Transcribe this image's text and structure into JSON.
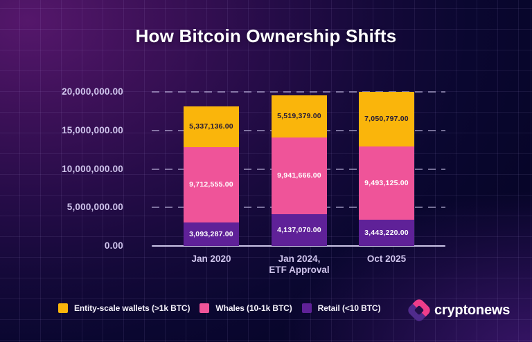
{
  "title": "How Bitcoin Ownership Shifts",
  "chart_data": {
    "type": "bar",
    "stacked": true,
    "title": "How Bitcoin Ownership Shifts",
    "categories": [
      "Jan 2020",
      "Jan 2024,\nETF Approval",
      "Oct 2025"
    ],
    "series": [
      {
        "name": "Entity-scale wallets (>1k BTC)",
        "color": "#FAB50B",
        "label_color": "#231A38",
        "values": [
          5337136,
          5519379,
          7050797
        ]
      },
      {
        "name": "Whales (10-1k BTC)",
        "color": "#EF5499",
        "label_color": "#FFFFFF",
        "values": [
          9712555,
          9941666,
          9493125
        ]
      },
      {
        "name": "Retail (<10 BTC)",
        "color": "#5F2198",
        "label_color": "#FFFFFF",
        "values": [
          3093287,
          4137070,
          3443220
        ]
      }
    ],
    "stack_order_top_to_bottom": [
      "Entity-scale wallets (>1k BTC)",
      "Whales (10-1k BTC)",
      "Retail (<10 BTC)"
    ],
    "y_ticks": [
      {
        "label": "20,000,000.00",
        "value": 20000000
      },
      {
        "label": "15,000,000.00",
        "value": 15000000
      },
      {
        "label": "10,000,000.00",
        "value": 10000000
      },
      {
        "label": "5,000,000.00",
        "value": 5000000
      },
      {
        "label": "0.00",
        "value": 0
      }
    ],
    "ylim": [
      0,
      20000000
    ],
    "grid": "horizontal-dashed",
    "legend_position": "bottom-left"
  },
  "legend": {
    "items": [
      {
        "label": "Entity-scale wallets (>1k BTC)",
        "color": "#FAB50B"
      },
      {
        "label": "Whales (10-1k BTC)",
        "color": "#EF5499"
      },
      {
        "label": "Retail (<10 BTC)",
        "color": "#5F2198"
      }
    ]
  },
  "branding": {
    "logo_text": "cryptonews",
    "logo_icon": "cryptonews-hex-icon",
    "logo_pink": "#EE3D8A",
    "logo_purple": "#502B8C"
  },
  "colors": {
    "background_glow": "#55176B",
    "background_base": "#070529",
    "axis_text": "#CFC4EC",
    "gridline": "#CDC6EC",
    "title_text": "#FFFFFF"
  }
}
